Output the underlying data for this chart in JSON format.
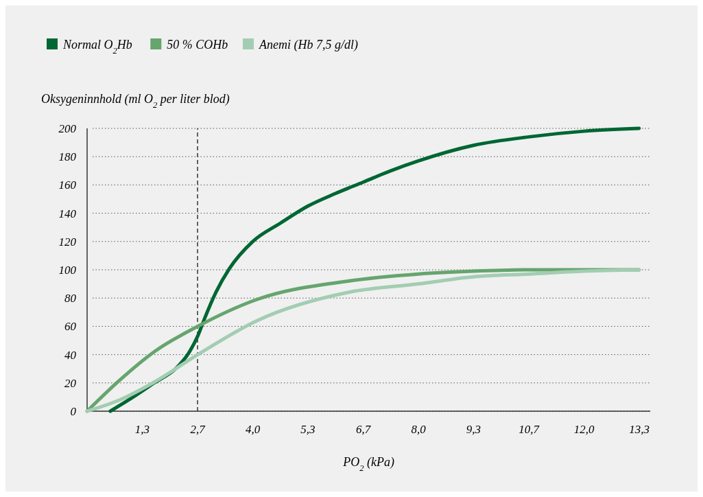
{
  "chart_data": {
    "type": "line",
    "xlabel": "PO$_{2}$ (kPa)",
    "ylabel": "Oksygeninnhold (ml O$_{2}$ per liter blod)",
    "xlim": [
      0,
      13.6
    ],
    "ylim": [
      0,
      200
    ],
    "xticks": [
      {
        "value": 1.333,
        "label": "1,3"
      },
      {
        "value": 2.667,
        "label": "2,7"
      },
      {
        "value": 4,
        "label": "4,0"
      },
      {
        "value": 5.333,
        "label": "5,3"
      },
      {
        "value": 6.667,
        "label": "6,7"
      },
      {
        "value": 8,
        "label": "8,0"
      },
      {
        "value": 9.333,
        "label": "9,3"
      },
      {
        "value": 10.667,
        "label": "10,7"
      },
      {
        "value": 12,
        "label": "12,0"
      },
      {
        "value": 13.333,
        "label": "13,3"
      }
    ],
    "yticks": [
      0,
      20,
      40,
      60,
      80,
      100,
      120,
      140,
      160,
      180,
      200
    ],
    "grid": "y",
    "legend": "top left",
    "line_style": "solid",
    "ref_lines": [
      {
        "axis": "x",
        "value": 2.667,
        "label": null,
        "line_style": "dashed",
        "color": "#333333"
      }
    ],
    "series": [
      {
        "name": "Normal O$_{2}$Hb",
        "color": "#006633",
        "x": [
          0.56,
          1.06,
          1.62,
          2.17,
          2.45,
          2.67,
          2.83,
          3.11,
          3.44,
          4.0,
          4.67,
          5.33,
          6.0,
          6.67,
          7.33,
          8.0,
          9.33,
          10.67,
          12.0,
          13.33
        ],
        "values": [
          0,
          9,
          20,
          31,
          41,
          53,
          65,
          84,
          101,
          120,
          133,
          145,
          154,
          162,
          170,
          177,
          188,
          194,
          198,
          200
        ]
      },
      {
        "name": "50 % COHb",
        "color": "#66a56e",
        "x": [
          0,
          0.79,
          1.62,
          2.67,
          4.1,
          6.3,
          8.0,
          9.33,
          10.67,
          12.0,
          13.33
        ],
        "values": [
          0,
          22,
          42,
          60,
          79,
          92,
          97,
          99,
          100,
          100,
          100
        ]
      },
      {
        "name": "Anemi (Hb 7,5 g/dl)",
        "color": "#a3cdb2",
        "x": [
          0,
          0.79,
          1.62,
          2.67,
          4.1,
          6.3,
          8.0,
          9.33,
          10.67,
          12.0,
          13.33
        ],
        "values": [
          0,
          8,
          20.5,
          40,
          64,
          84,
          90,
          95,
          97,
          99,
          100
        ]
      }
    ]
  }
}
